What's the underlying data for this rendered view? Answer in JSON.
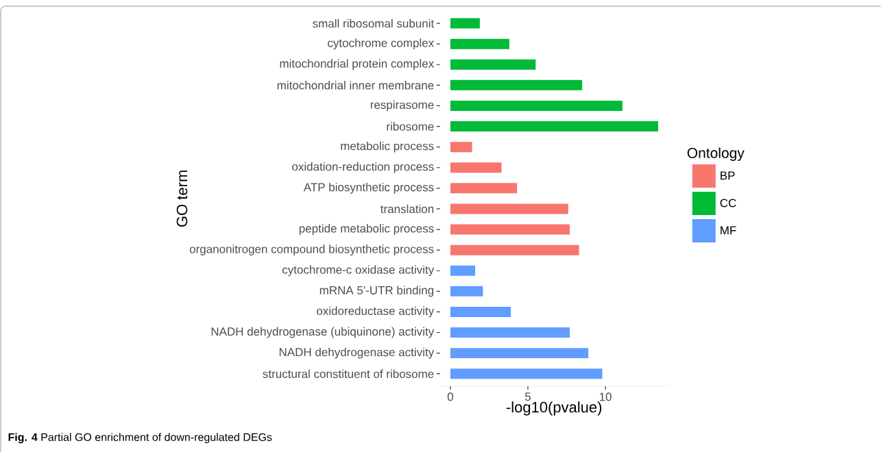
{
  "chart_data": {
    "type": "bar",
    "orientation": "horizontal",
    "xlabel": "-log10(pvalue)",
    "ylabel": "GO term",
    "legend_title": "Ontology",
    "legend": "right",
    "categories": [
      "small ribosomal subunit",
      "cytochrome complex",
      "mitochondrial protein complex",
      "mitochondrial inner membrane",
      "respirasome",
      "ribosome",
      "metabolic process",
      "oxidation-reduction process",
      "ATP biosynthetic process",
      "translation",
      "peptide metabolic process",
      "organonitrogen compound biosynthetic process",
      "cytochrome-c oxidase activity",
      "mRNA 5'-UTR binding",
      "oxidoreductase activity",
      "NADH dehydrogenase (ubiquinone) activity",
      "NADH dehydrogenase activity",
      "structural constituent of ribosome"
    ],
    "series": [
      {
        "name": "BP",
        "color": "#f8766d",
        "values": [
          null,
          null,
          null,
          null,
          null,
          null,
          1.4,
          3.3,
          4.3,
          7.6,
          7.7,
          8.3,
          null,
          null,
          null,
          null,
          null,
          null
        ]
      },
      {
        "name": "CC",
        "color": "#00ba38",
        "values": [
          1.9,
          3.8,
          5.5,
          8.5,
          11.1,
          13.4,
          null,
          null,
          null,
          null,
          null,
          null,
          null,
          null,
          null,
          null,
          null,
          null
        ]
      },
      {
        "name": "MF",
        "color": "#619cff",
        "values": [
          null,
          null,
          null,
          null,
          null,
          null,
          null,
          null,
          null,
          null,
          null,
          null,
          1.6,
          2.1,
          3.9,
          7.7,
          8.9,
          9.8
        ]
      }
    ],
    "xlim": [
      -0.67,
      14.05
    ],
    "xticks": [
      0,
      5,
      10
    ],
    "grid": false,
    "annotations": [
      "**Fig. 4** Partial GO enrichment of down-regulated DEGs"
    ]
  }
}
